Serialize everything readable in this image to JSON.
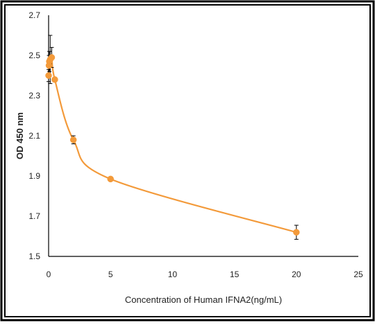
{
  "chart_data": {
    "type": "scatter",
    "title": "",
    "xlabel": "Concentration of Human IFNA2(ng/mL)",
    "ylabel": "OD 450 nm",
    "xlim": [
      0,
      25
    ],
    "ylim": [
      1.5,
      2.7
    ],
    "x_ticks": [
      "0",
      "5",
      "10",
      "15",
      "20",
      "25"
    ],
    "y_ticks": [
      "1.5",
      "1.7",
      "1.9",
      "2.1",
      "2.3",
      "2.5",
      "2.7"
    ],
    "grid": false,
    "legend": "none",
    "smooth_line": true,
    "series": [
      {
        "color": "#f39a3a",
        "points": [
          {
            "x": 0.0,
            "y": 2.4,
            "err": 0.03
          },
          {
            "x": 0.03,
            "y": 2.45,
            "err": 0.05
          },
          {
            "x": 0.06,
            "y": 2.47,
            "err": 0.05
          },
          {
            "x": 0.13,
            "y": 2.48,
            "err": 0.12
          },
          {
            "x": 0.25,
            "y": 2.49,
            "err": 0.05
          },
          {
            "x": 0.5,
            "y": 2.38,
            "err": 0.01
          },
          {
            "x": 2.0,
            "y": 2.08,
            "err": 0.02
          },
          {
            "x": 5.0,
            "y": 1.885,
            "err": 0.005
          },
          {
            "x": 20.0,
            "y": 1.62,
            "err": 0.035
          }
        ]
      }
    ]
  }
}
